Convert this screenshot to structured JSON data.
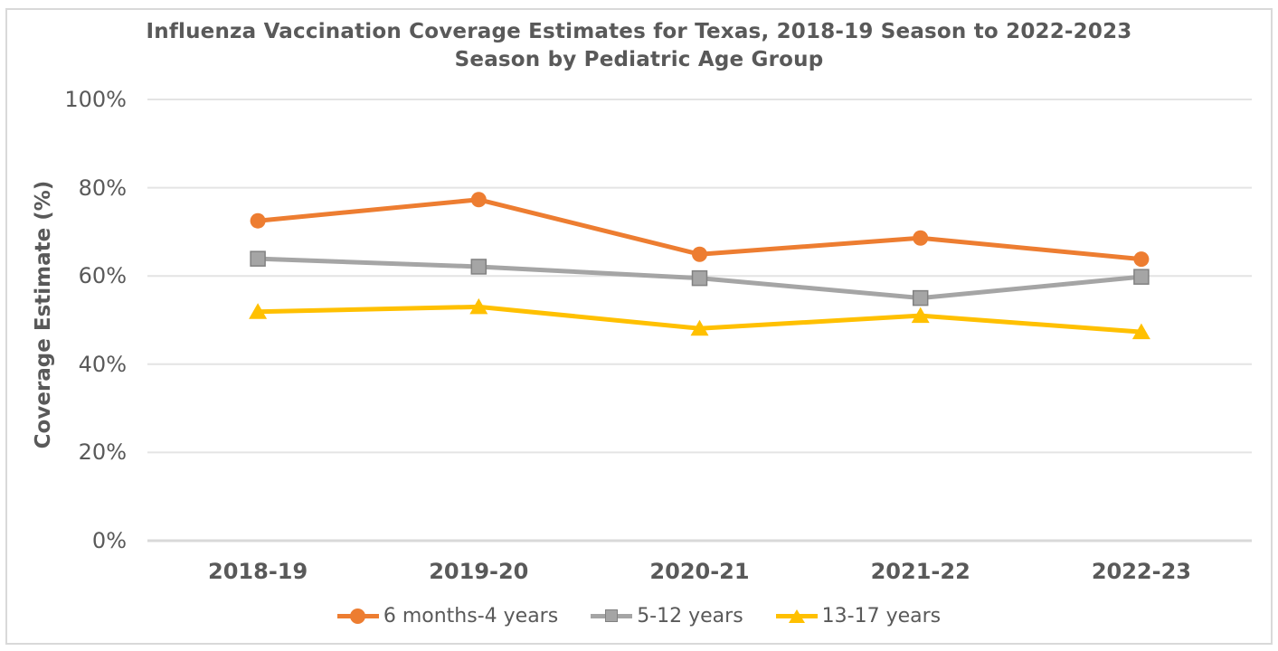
{
  "chart_data": {
    "type": "line",
    "title": "Influenza Vaccination Coverage Estimates for Texas, 2018-19 Season to 2022-2023 Season by Pediatric Age Group",
    "xlabel": "",
    "ylabel": "Coverage Estimate (%)",
    "categories": [
      "2018-19",
      "2019-20",
      "2020-21",
      "2021-22",
      "2022-23"
    ],
    "y_tick_labels": [
      "0%",
      "20%",
      "40%",
      "60%",
      "80%",
      "100%"
    ],
    "ylim": [
      0,
      100
    ],
    "grid": "horizontal",
    "legend_position": "bottom",
    "series": [
      {
        "name": "6 months-4 years",
        "marker": "circle",
        "color": "#ED7D31",
        "values": [
          72.5,
          77.3,
          64.9,
          68.6,
          63.8
        ]
      },
      {
        "name": "5-12 years",
        "marker": "square",
        "color": "#A5A5A5",
        "marker_border_color": "#818181",
        "values": [
          63.9,
          62.1,
          59.5,
          55.0,
          59.8
        ]
      },
      {
        "name": "13-17 years",
        "marker": "triangle",
        "color": "#FFC000",
        "values": [
          51.9,
          53.0,
          48.1,
          51.0,
          47.3
        ]
      }
    ],
    "colors": {
      "text": "#595959",
      "gridline": "#e4e4e4",
      "axis_line": "#d9d9d9",
      "border": "#d9d9d9",
      "background": "#ffffff"
    }
  }
}
